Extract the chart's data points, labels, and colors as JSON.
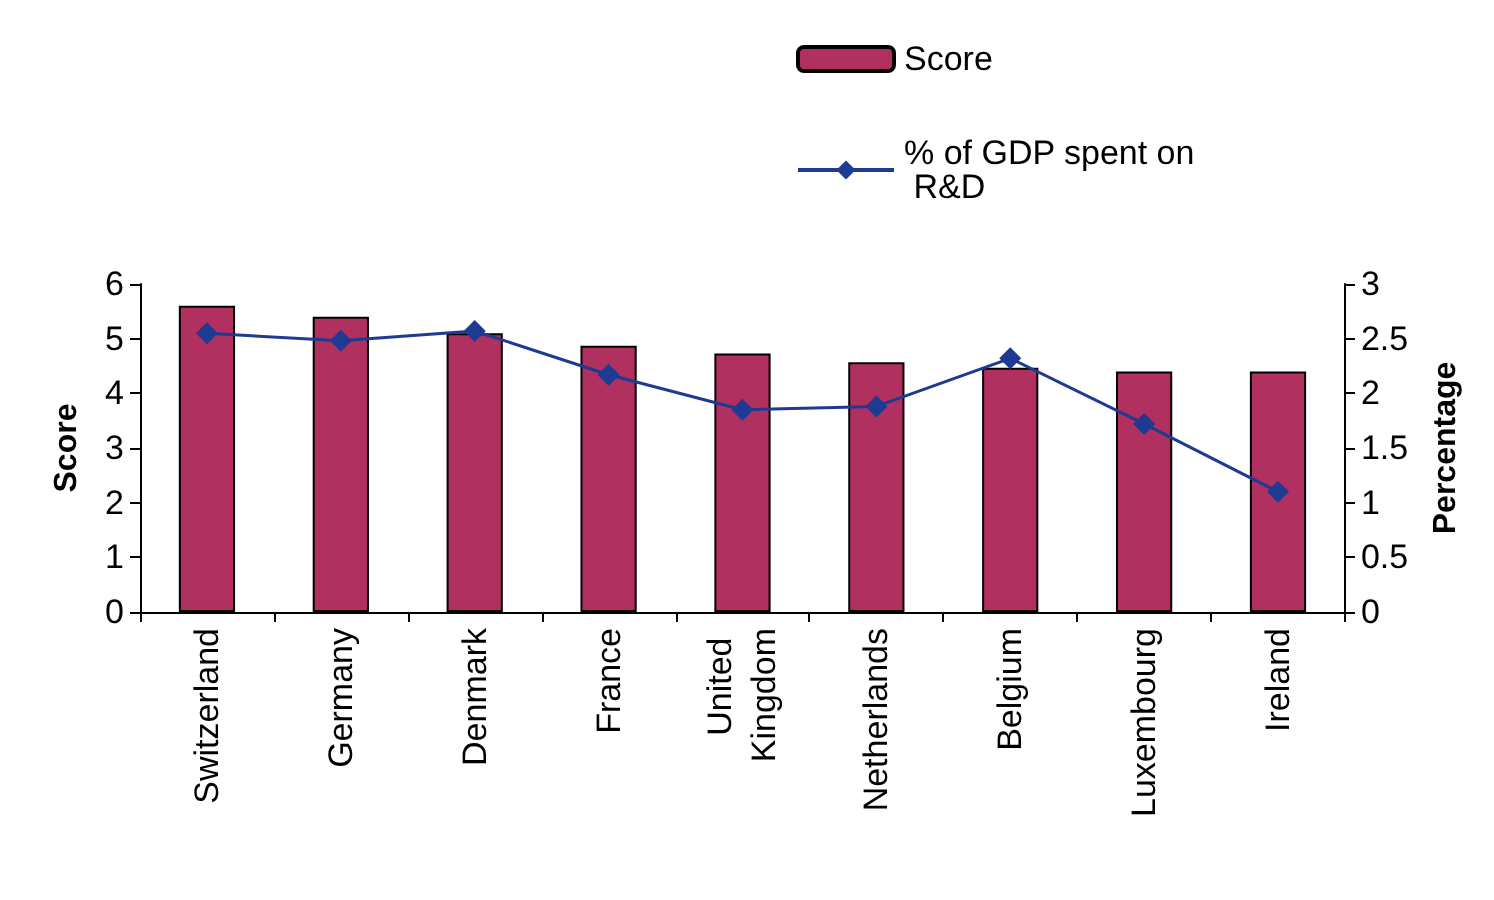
{
  "chart_data": {
    "type": "bar",
    "ylabel": "Score",
    "y2label": "Percentage",
    "categories": [
      "Switzerland",
      "Germany",
      "Denmark",
      "France",
      "United Kingdom",
      "Netherlands",
      "Belgium",
      "Luxembourg",
      "Ireland"
    ],
    "series": [
      {
        "name": "Score",
        "color": "#b03060",
        "values": [
          5.6,
          5.4,
          5.1,
          4.87,
          4.73,
          4.57,
          4.47,
          4.4,
          4.4
        ]
      },
      {
        "name": "% of GDP spent on R&D",
        "type": "line",
        "axis": "y2",
        "color": "#1f3a93",
        "marker": "diamond",
        "values": [
          2.55,
          2.48,
          2.57,
          2.17,
          1.85,
          1.88,
          2.32,
          1.72,
          1.1
        ]
      }
    ],
    "ylim": [
      0,
      6
    ],
    "yticks": [
      0,
      1,
      2,
      3,
      4,
      5,
      6
    ],
    "y2lim": [
      0,
      3
    ],
    "y2ticks": [
      0,
      0.5,
      1,
      1.5,
      2,
      2.5,
      3
    ],
    "grid": false,
    "legend": "top right"
  }
}
